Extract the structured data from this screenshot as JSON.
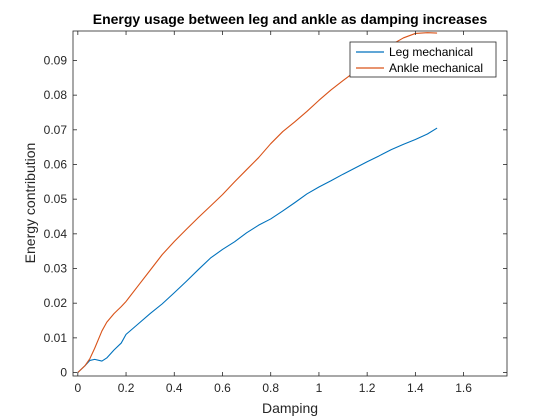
{
  "chart_data": {
    "type": "line",
    "title": "Energy usage between leg and ankle as damping increases",
    "xlabel": "Damping",
    "ylabel": "Energy contribution",
    "xlim": [
      -0.02,
      1.78
    ],
    "ylim": [
      -0.001,
      0.0985
    ],
    "xticks": [
      0,
      0.2,
      0.4,
      0.6,
      0.8,
      1,
      1.2,
      1.4,
      1.6
    ],
    "xtick_labels": [
      "0",
      "0.2",
      "0.4",
      "0.6",
      "0.8",
      "1",
      "1.2",
      "1.4",
      "1.6"
    ],
    "yticks": [
      0,
      0.01,
      0.02,
      0.03,
      0.04,
      0.05,
      0.06,
      0.07,
      0.08,
      0.09
    ],
    "ytick_labels": [
      "0",
      "0.01",
      "0.02",
      "0.03",
      "0.04",
      "0.05",
      "0.06",
      "0.07",
      "0.08",
      "0.09"
    ],
    "grid": false,
    "legend_position": "top-right",
    "series": [
      {
        "name": "Leg mechanical",
        "color": "#0072BD",
        "x": [
          0,
          0.03,
          0.05,
          0.07,
          0.1,
          0.12,
          0.15,
          0.18,
          0.2,
          0.25,
          0.3,
          0.35,
          0.4,
          0.45,
          0.5,
          0.55,
          0.6,
          0.65,
          0.7,
          0.75,
          0.8,
          0.85,
          0.9,
          0.95,
          1.0,
          1.05,
          1.1,
          1.15,
          1.2,
          1.25,
          1.3,
          1.35,
          1.4,
          1.45,
          1.49
        ],
        "y": [
          0,
          0.002,
          0.0035,
          0.0038,
          0.0033,
          0.0042,
          0.0065,
          0.0085,
          0.011,
          0.014,
          0.017,
          0.0198,
          0.023,
          0.0263,
          0.0297,
          0.033,
          0.0355,
          0.0377,
          0.0403,
          0.0425,
          0.0443,
          0.0466,
          0.049,
          0.0515,
          0.0535,
          0.0553,
          0.0572,
          0.059,
          0.0608,
          0.0625,
          0.0643,
          0.0658,
          0.0672,
          0.0688,
          0.0705
        ]
      },
      {
        "name": "Ankle mechanical",
        "color": "#D95319",
        "x": [
          0,
          0.03,
          0.05,
          0.07,
          0.1,
          0.12,
          0.15,
          0.18,
          0.2,
          0.25,
          0.3,
          0.35,
          0.4,
          0.45,
          0.5,
          0.55,
          0.6,
          0.65,
          0.7,
          0.75,
          0.8,
          0.85,
          0.9,
          0.95,
          1.0,
          1.05,
          1.1,
          1.15,
          1.2,
          1.25,
          1.3,
          1.35,
          1.4,
          1.45,
          1.49
        ],
        "y": [
          0,
          0.002,
          0.004,
          0.007,
          0.012,
          0.0145,
          0.017,
          0.019,
          0.0205,
          0.025,
          0.0295,
          0.034,
          0.0378,
          0.0413,
          0.0447,
          0.048,
          0.0513,
          0.055,
          0.0585,
          0.062,
          0.066,
          0.0695,
          0.0723,
          0.0753,
          0.0785,
          0.0815,
          0.0842,
          0.0868,
          0.0895,
          0.0922,
          0.0945,
          0.0965,
          0.0978,
          0.098,
          0.0979
        ]
      }
    ]
  }
}
